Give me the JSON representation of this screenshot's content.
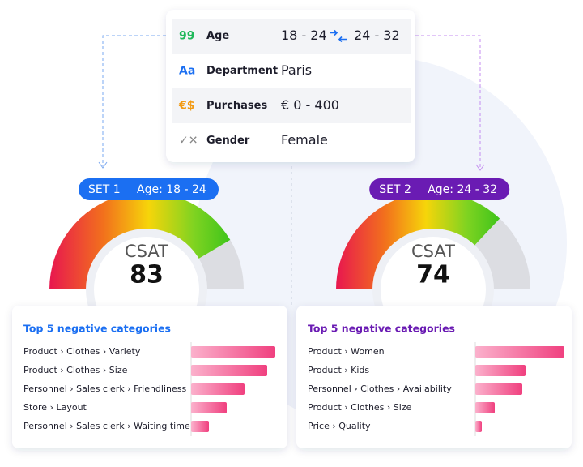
{
  "filters": [
    {
      "icon": "99",
      "label": "Age",
      "value": "18 - 24",
      "compare": "24 - 32"
    },
    {
      "icon": "Aa",
      "label": "Department",
      "value": "Paris"
    },
    {
      "icon": "€$",
      "label": "Purchases",
      "value": "€ 0 - 400"
    },
    {
      "icon": "✓✕",
      "label": "Gender",
      "value": "Female"
    }
  ],
  "sets": [
    {
      "name": "SET 1",
      "segment": "Age: 18 - 24",
      "color": "#1b6ff2",
      "metric": "CSAT",
      "score": 83,
      "score_range": [
        0,
        100
      ],
      "chart_title": "Top 5 negative categories",
      "categories": [
        "Product › Clothes › Variety",
        "Product › Clothes › Size",
        "Personnel › Sales clerk › Friendliness",
        "Store › Layout",
        "Personnel › Sales clerk › Waiting time"
      ],
      "values": [
        104,
        94,
        66,
        44,
        22
      ],
      "xlim": [
        0,
        110
      ]
    },
    {
      "name": "SET 2",
      "segment": "Age: 24 - 32",
      "color": "#6a1bb3",
      "metric": "CSAT",
      "score": 74,
      "score_range": [
        0,
        100
      ],
      "chart_title": "Top 5 negative categories",
      "categories": [
        "Product › Women",
        "Product › Kids",
        "Personnel › Clothes › Availability",
        "Product › Clothes › Size",
        "Price › Quality"
      ],
      "values": [
        110,
        62,
        58,
        24,
        8
      ],
      "xlim": [
        0,
        110
      ]
    }
  ]
}
